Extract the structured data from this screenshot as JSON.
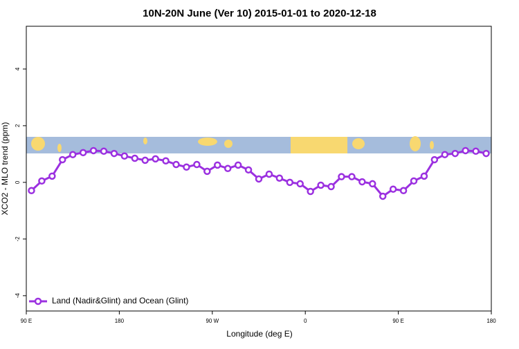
{
  "chart_data": {
    "type": "line",
    "title": "10N-20N June (Ver 10)   2015-01-01 to 2020-12-18",
    "x_label": "Longitude (deg E)",
    "y_label": "XCO2 - MLO trend (ppm)",
    "x": [
      95,
      105,
      115,
      125,
      135,
      145,
      155,
      165,
      175,
      185,
      195,
      205,
      215,
      225,
      235,
      245,
      255,
      265,
      275,
      285,
      295,
      305,
      315,
      325,
      335,
      345,
      355,
      365,
      375,
      385,
      395,
      405,
      415,
      425,
      435,
      445,
      455,
      465,
      475,
      485,
      495,
      505,
      515,
      525,
      535
    ],
    "series": [
      {
        "name": "Land (Nadir&Glint) and Ocean (Glint)",
        "color": "#9b30e0",
        "values": [
          -0.29,
          0.05,
          0.22,
          0.8,
          0.98,
          1.05,
          1.12,
          1.1,
          1.02,
          0.93,
          0.85,
          0.78,
          0.83,
          0.76,
          0.63,
          0.54,
          0.63,
          0.39,
          0.61,
          0.49,
          0.61,
          0.44,
          0.12,
          0.29,
          0.15,
          0.0,
          -0.05,
          -0.32,
          -0.1,
          -0.15,
          0.2,
          0.2,
          0.02,
          -0.05,
          -0.49,
          -0.24,
          -0.29,
          0.05,
          0.22,
          0.8,
          0.98,
          1.02,
          1.12,
          1.1,
          1.02
        ]
      }
    ],
    "xlim": [
      90,
      540
    ],
    "xticks": [
      {
        "value": 90,
        "label": "90 E"
      },
      180,
      {
        "value": 270,
        "label": "90 W"
      },
      {
        "value": 360,
        "label": "0"
      },
      {
        "value": 450,
        "label": "90 E"
      },
      {
        "value": 540,
        "label": "180"
      }
    ],
    "ylim": [
      -4.54,
      5.51
    ],
    "yticks": [
      -4,
      -2,
      0,
      2,
      4
    ],
    "legend": "bottom-left"
  }
}
